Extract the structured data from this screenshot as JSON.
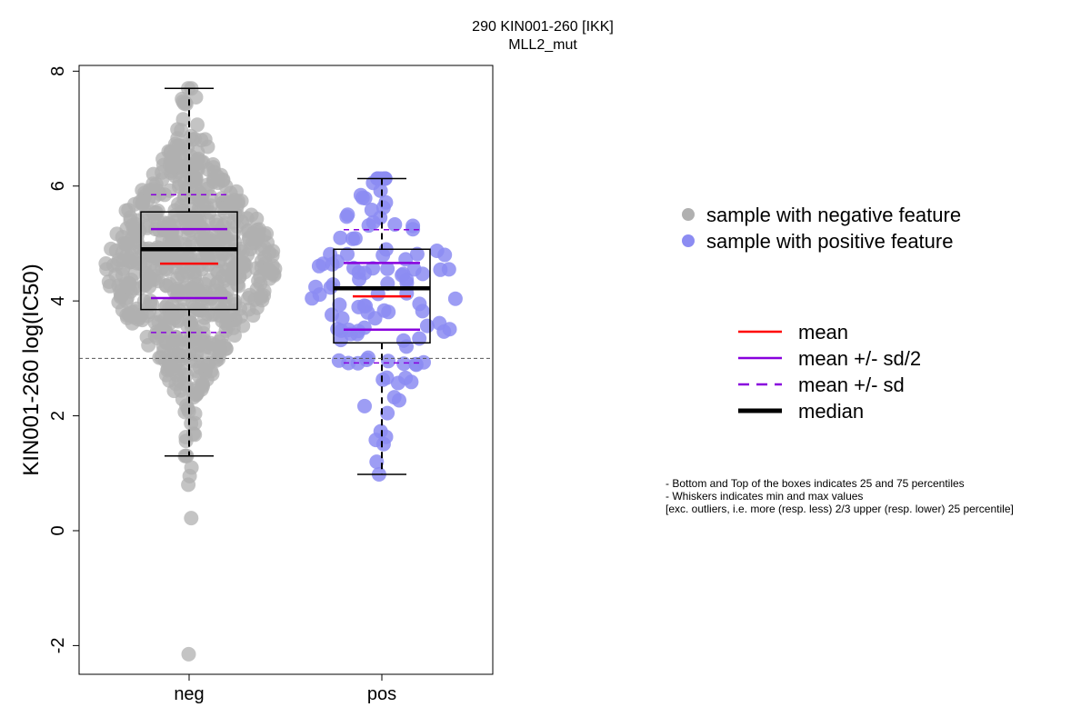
{
  "chart_data": {
    "type": "boxplot",
    "title": "290 KIN001-260 [IKK]",
    "subtitle": "MLL2_mut",
    "ylabel": "KIN001-260 log(IC50)",
    "ylim": [
      -2.5,
      8.1
    ],
    "yticks": [
      -2,
      0,
      2,
      4,
      6,
      8
    ],
    "reference_line_y": 3.0,
    "categories": [
      "neg",
      "pos"
    ],
    "groups": [
      {
        "category": "neg",
        "color": "#b0b0b0",
        "n_points": 700,
        "min": 1.3,
        "q1": 3.85,
        "median": 4.9,
        "q3": 5.55,
        "max": 7.7,
        "mean": 4.65,
        "sd": 1.2,
        "outliers": [
          1.1,
          0.95,
          0.8,
          0.22,
          -2.15
        ]
      },
      {
        "category": "pos",
        "color": "#8c8cf2",
        "n_points": 110,
        "min": 0.98,
        "q1": 3.27,
        "median": 4.22,
        "q3": 4.9,
        "max": 6.13,
        "mean": 4.08,
        "sd": 1.16,
        "outliers": []
      }
    ],
    "legend_points": [
      {
        "label": "sample with negative feature",
        "color": "#b0b0b0"
      },
      {
        "label": "sample with positive feature",
        "color": "#8c8cf2"
      }
    ],
    "legend_lines": [
      {
        "label": "mean",
        "color": "#ff0000",
        "style": "solid"
      },
      {
        "label": "mean +/- sd/2",
        "color": "#8800dd",
        "style": "solid"
      },
      {
        "label": "mean +/- sd",
        "color": "#8800dd",
        "style": "dashed"
      },
      {
        "label": "median",
        "color": "#000000",
        "style": "thick"
      }
    ],
    "notes": [
      "- Bottom and Top of the boxes indicates 25 and 75 percentiles",
      "- Whiskers indicates min and max values",
      "[exc. outliers, i.e. more (resp. less) 2/3 upper (resp. lower) 25 percentile]"
    ]
  }
}
